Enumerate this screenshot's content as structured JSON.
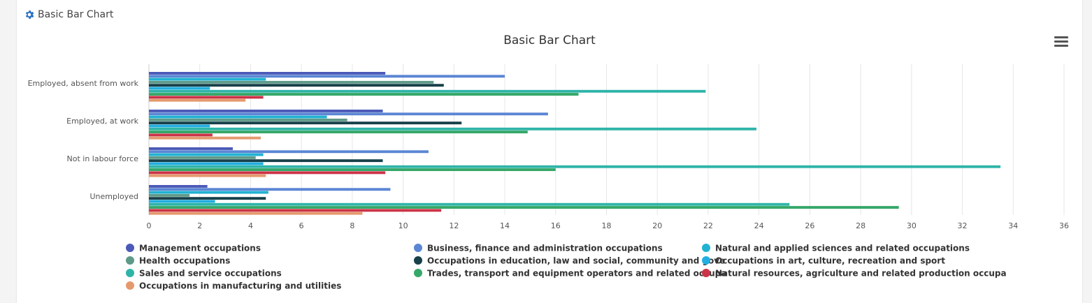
{
  "panel": {
    "header_title": "Basic Bar Chart",
    "header_icon": "gear-icon",
    "menu_icon": "hamburger-menu-icon"
  },
  "chart_data": {
    "type": "bar",
    "orientation": "horizontal",
    "title": "Basic Bar Chart",
    "xlabel": "",
    "ylabel": "",
    "xlim": [
      0,
      36
    ],
    "x_ticks": [
      "0",
      "2",
      "4",
      "6",
      "8",
      "10",
      "12",
      "14",
      "16",
      "18",
      "20",
      "22",
      "24",
      "26",
      "28",
      "30",
      "32",
      "34",
      "36"
    ],
    "grid": true,
    "legend_position": "bottom",
    "categories": [
      "Employed, absent from work",
      "Employed, at work",
      "Not in labour force",
      "Unemployed"
    ],
    "series": [
      {
        "name": "Management occupations",
        "color": "#4b5ab8",
        "values": [
          9.3,
          9.2,
          3.3,
          2.3
        ]
      },
      {
        "name": "Business, finance and administration occupations",
        "color": "#5b86d4",
        "values": [
          14.0,
          15.7,
          11.0,
          9.5
        ]
      },
      {
        "name": "Natural and applied sciences and related occupations",
        "color": "#21b2d2",
        "values": [
          4.6,
          7.0,
          4.5,
          4.7
        ]
      },
      {
        "name": "Health occupations",
        "color": "#5f9988",
        "values": [
          11.2,
          7.8,
          4.2,
          1.6
        ]
      },
      {
        "name": "Occupations in education, law and social, community and gove",
        "color": "#18404a",
        "values": [
          11.6,
          12.3,
          9.2,
          4.6
        ]
      },
      {
        "name": "Occupations in art, culture, recreation and sport",
        "color": "#22aee0",
        "values": [
          2.4,
          2.4,
          4.5,
          2.6
        ]
      },
      {
        "name": "Sales and service occupations",
        "color": "#2fb4a8",
        "values": [
          21.9,
          23.9,
          33.5,
          25.2
        ]
      },
      {
        "name": "Trades, transport and equipment operators and related occupa",
        "color": "#35a869",
        "values": [
          16.9,
          14.9,
          16.0,
          29.5
        ]
      },
      {
        "name": "Natural resources, agriculture and related production occupa",
        "color": "#cc3347",
        "values": [
          4.5,
          2.5,
          9.3,
          11.5
        ]
      },
      {
        "name": "Occupations in manufacturing and utilities",
        "color": "#e59a6e",
        "values": [
          3.8,
          4.4,
          4.6,
          8.4
        ]
      }
    ]
  }
}
